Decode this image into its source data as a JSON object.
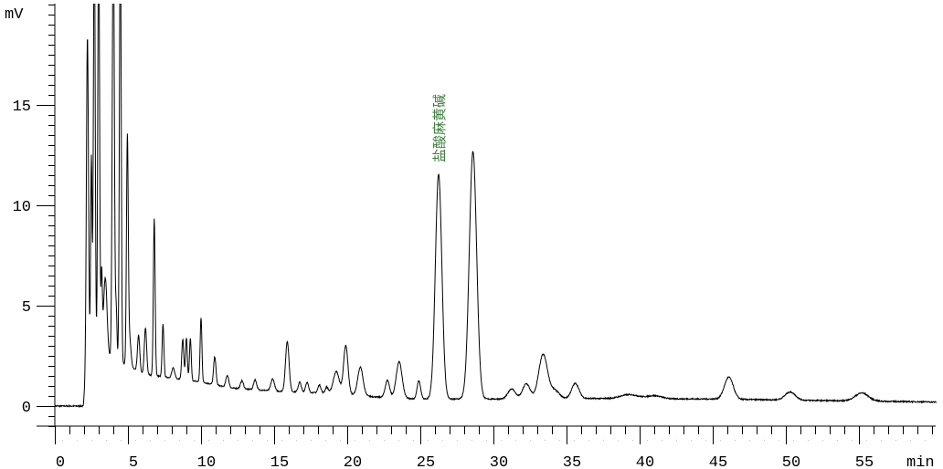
{
  "chart_data": {
    "type": "line",
    "title": "",
    "xlabel": "min",
    "ylabel": "mV",
    "xlim": [
      0,
      60.3
    ],
    "ylim": [
      -1,
      20
    ],
    "x_ticks": [
      0,
      5,
      10,
      15,
      20,
      25,
      30,
      35,
      40,
      45,
      50,
      55
    ],
    "y_ticks": [
      0,
      5,
      10,
      15
    ],
    "x_minor_step": 1,
    "y_minor_step": 0.5,
    "grid": false,
    "line_color": "#000000",
    "annotation_color": "#3f7f3f",
    "annotations": [
      {
        "text": "盐酸麻黄碱",
        "x": 26.25
      }
    ],
    "baseline": [
      [
        0,
        0
      ],
      [
        1.95,
        0
      ],
      [
        2.2,
        2.4
      ],
      [
        4,
        2.4
      ],
      [
        6,
        1.6
      ],
      [
        8,
        1.4
      ],
      [
        10,
        1.2
      ],
      [
        12,
        0.9
      ],
      [
        15,
        0.75
      ],
      [
        20,
        0.6
      ],
      [
        22,
        0.45
      ],
      [
        25,
        0.35
      ],
      [
        30,
        0.35
      ],
      [
        36,
        0.38
      ],
      [
        45,
        0.35
      ],
      [
        50,
        0.3
      ],
      [
        60.3,
        0.2
      ]
    ],
    "peaks": [
      {
        "rt": 2.23,
        "height": 16.0,
        "width": 0.07
      },
      {
        "rt": 2.5,
        "height": 10.0,
        "width": 0.05
      },
      {
        "rt": 2.7,
        "height": 22.0,
        "width": 0.06
      },
      {
        "rt": 3.0,
        "height": 22.0,
        "width": 0.06
      },
      {
        "rt": 3.2,
        "height": 4.0,
        "width": 0.05
      },
      {
        "rt": 3.45,
        "height": 4.0,
        "width": 0.12
      },
      {
        "rt": 4.0,
        "height": 22.0,
        "width": 0.07
      },
      {
        "rt": 4.2,
        "height": 2.5,
        "width": 0.05
      },
      {
        "rt": 4.48,
        "height": 22.0,
        "width": 0.06
      },
      {
        "rt": 4.96,
        "height": 11.0,
        "width": 0.06
      },
      {
        "rt": 5.1,
        "height": 1.5,
        "width": 0.1
      },
      {
        "rt": 5.73,
        "height": 1.8,
        "width": 0.08
      },
      {
        "rt": 6.2,
        "height": 2.3,
        "width": 0.08
      },
      {
        "rt": 6.8,
        "height": 7.8,
        "width": 0.06
      },
      {
        "rt": 7.4,
        "height": 2.6,
        "width": 0.06
      },
      {
        "rt": 8.1,
        "height": 0.5,
        "width": 0.1
      },
      {
        "rt": 8.75,
        "height": 2.0,
        "width": 0.07
      },
      {
        "rt": 9.0,
        "height": 2.1,
        "width": 0.06
      },
      {
        "rt": 9.27,
        "height": 2.1,
        "width": 0.06
      },
      {
        "rt": 10.0,
        "height": 3.2,
        "width": 0.06
      },
      {
        "rt": 10.94,
        "height": 1.4,
        "width": 0.08
      },
      {
        "rt": 11.8,
        "height": 0.6,
        "width": 0.1
      },
      {
        "rt": 12.8,
        "height": 0.4,
        "width": 0.1
      },
      {
        "rt": 13.7,
        "height": 0.5,
        "width": 0.1
      },
      {
        "rt": 14.9,
        "height": 0.6,
        "width": 0.12
      },
      {
        "rt": 15.9,
        "height": 2.5,
        "width": 0.12
      },
      {
        "rt": 16.75,
        "height": 0.5,
        "width": 0.1
      },
      {
        "rt": 17.25,
        "height": 0.5,
        "width": 0.1
      },
      {
        "rt": 18.1,
        "height": 0.4,
        "width": 0.1
      },
      {
        "rt": 18.6,
        "height": 0.3,
        "width": 0.1
      },
      {
        "rt": 19.25,
        "height": 1.1,
        "width": 0.2
      },
      {
        "rt": 19.9,
        "height": 2.4,
        "width": 0.15
      },
      {
        "rt": 20.9,
        "height": 1.4,
        "width": 0.18
      },
      {
        "rt": 22.75,
        "height": 0.85,
        "width": 0.15
      },
      {
        "rt": 23.55,
        "height": 1.8,
        "width": 0.2
      },
      {
        "rt": 24.9,
        "height": 0.9,
        "width": 0.12
      },
      {
        "rt": 26.25,
        "height": 11.2,
        "width": 0.22
      },
      {
        "rt": 28.6,
        "height": 12.35,
        "width": 0.25
      },
      {
        "rt": 31.25,
        "height": 0.5,
        "width": 0.25
      },
      {
        "rt": 32.25,
        "height": 0.75,
        "width": 0.25
      },
      {
        "rt": 33.4,
        "height": 2.2,
        "width": 0.3
      },
      {
        "rt": 34.2,
        "height": 0.4,
        "width": 0.3
      },
      {
        "rt": 35.6,
        "height": 0.75,
        "width": 0.25
      },
      {
        "rt": 39.3,
        "height": 0.2,
        "width": 0.6
      },
      {
        "rt": 41.0,
        "height": 0.15,
        "width": 0.5
      },
      {
        "rt": 46.1,
        "height": 1.1,
        "width": 0.3
      },
      {
        "rt": 50.3,
        "height": 0.4,
        "width": 0.35
      },
      {
        "rt": 55.2,
        "height": 0.4,
        "width": 0.45
      }
    ]
  }
}
